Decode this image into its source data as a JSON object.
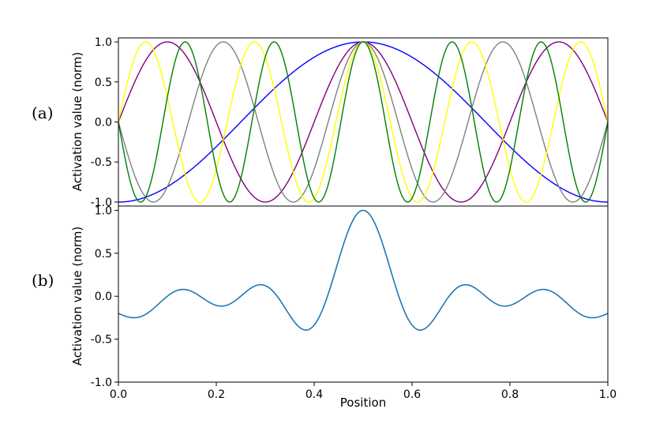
{
  "chart_data": [
    {
      "type": "line",
      "panel_label": "(a)",
      "title": "",
      "xlabel": "",
      "ylabel": "Activation value (norm)",
      "xlim": [
        0.0,
        1.0
      ],
      "ylim": [
        -1.05,
        1.05
      ],
      "y_ticks": [
        "-1.0",
        "-0.5",
        "0.0",
        "0.5",
        "1.0"
      ],
      "y_tick_values": [
        -1.0,
        -0.5,
        0.0,
        0.5,
        1.0
      ],
      "grid": false,
      "series": [
        {
          "color": "#0000ff",
          "function": "sin(2*pi*k*(x-0.5)+pi/2)",
          "k": 1
        },
        {
          "color": "#800080",
          "function": "sin(2*pi*k*(x-0.5)+pi/2)",
          "k": 2.5
        },
        {
          "color": "#808080",
          "function": "sin(2*pi*k*(x-0.5)+pi/2)",
          "k": 3.5
        },
        {
          "color": "#ffff00",
          "function": "sin(2*pi*k*(x-0.5)+pi/2)",
          "k": 4.5
        },
        {
          "color": "#008000",
          "function": "sin(2*pi*k*(x-0.5)+pi/2)",
          "k": 5.5
        }
      ]
    },
    {
      "type": "line",
      "panel_label": "(b)",
      "title": "",
      "xlabel": "Position",
      "ylabel": "Activation value (norm)",
      "xlim": [
        0.0,
        1.0
      ],
      "ylim": [
        -1.0,
        1.05
      ],
      "x_ticks": [
        "0.0",
        "0.2",
        "0.4",
        "0.6",
        "0.8",
        "1.0"
      ],
      "x_tick_values": [
        0.0,
        0.2,
        0.4,
        0.6,
        0.8,
        1.0
      ],
      "y_ticks": [
        "-1.0",
        "-0.5",
        "0.0",
        "0.5",
        "1.0"
      ],
      "y_tick_values": [
        -1.0,
        -0.5,
        0.0,
        0.5,
        1.0
      ],
      "grid": false,
      "series": [
        {
          "color": "#1f77b4",
          "function": "normalized sum of panel (a) series"
        }
      ],
      "key_points": [
        {
          "x": 0.5,
          "y": 1.0
        },
        {
          "x": 0.43,
          "y": -0.35
        },
        {
          "x": 0.57,
          "y": -0.35
        },
        {
          "x": 0.0,
          "y": 0.0
        },
        {
          "x": 1.0,
          "y": 0.0
        }
      ]
    }
  ]
}
